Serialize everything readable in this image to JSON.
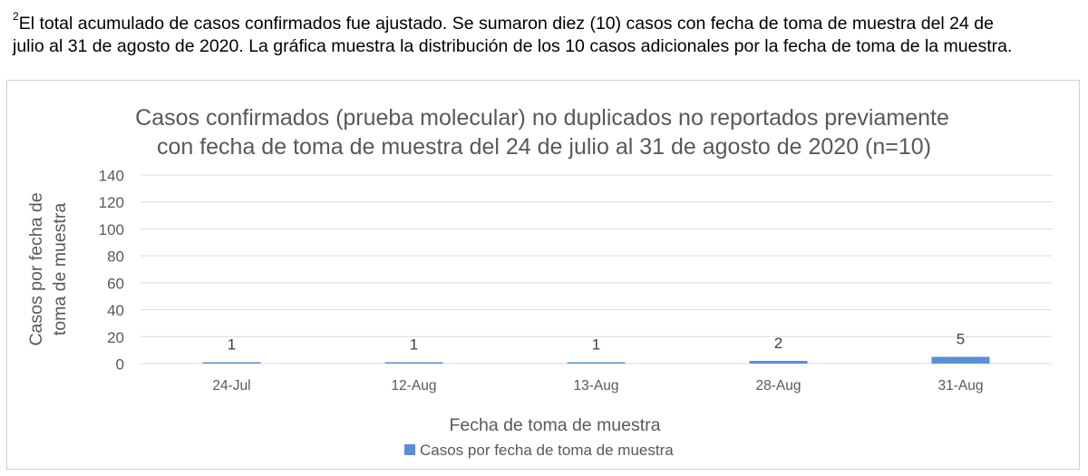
{
  "footnote": {
    "marker": "2",
    "line1": "El total acumulado de casos confirmados fue ajustado. Se sumaron diez (10) casos con fecha de toma de muestra del 24 de",
    "line2": "julio al 31 de agosto de 2020. La gráfica muestra la distribución de los 10 casos adicionales por la fecha de toma de la muestra."
  },
  "colors": {
    "bar": "#5b8fd6",
    "title": "#595959",
    "axis_text": "#595959",
    "gridline": "#d9d9d9",
    "frame": "#d0d0d0"
  },
  "chart_data": {
    "type": "bar",
    "title_lines": [
      "Casos confirmados (prueba molecular) no duplicados no reportados previamente",
      "con fecha de toma de muestra del 24 de julio al 31 de agosto de 2020 (n=10)"
    ],
    "categories": [
      "24-Jul",
      "12-Aug",
      "13-Aug",
      "28-Aug",
      "31-Aug"
    ],
    "series": [
      {
        "name": "Casos por fecha de toma de muestra",
        "values": [
          1,
          1,
          1,
          2,
          5
        ],
        "data_labels": [
          "1",
          "1",
          "1",
          "2",
          "5"
        ]
      }
    ],
    "xlabel": "Fecha de toma de muestra",
    "ylabel_lines": [
      "Casos por fecha de",
      "toma de muestra"
    ],
    "ylim": [
      0,
      140
    ],
    "y_ticks": [
      0,
      20,
      40,
      60,
      80,
      100,
      120,
      140
    ],
    "y_tick_labels": [
      "0",
      "20",
      "40",
      "60",
      "80",
      "100",
      "120",
      "140"
    ],
    "grid": true,
    "legend_position": "bottom",
    "legend_label": "Casos por fecha de toma de muestra"
  }
}
